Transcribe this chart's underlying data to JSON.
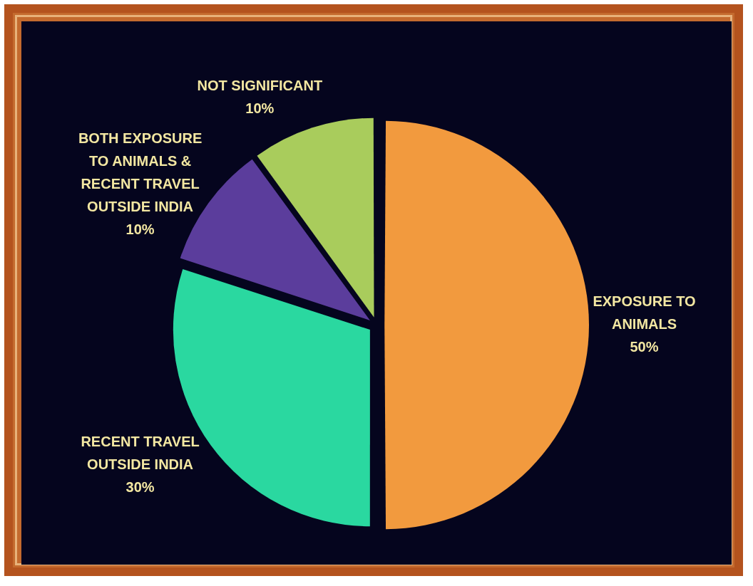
{
  "chart_data": {
    "type": "pie",
    "categories": [
      "EXPOSURE TO ANIMALS",
      "RECENT TRAVEL OUTSIDE INDIA",
      "BOTH EXPOSURE TO ANIMALS & RECENT TRAVEL OUTSIDE INDIA",
      "NOT SIGNIFICANT"
    ],
    "values": [
      50,
      30,
      10,
      10
    ],
    "colors": [
      "#f29a3e",
      "#2ad8a0",
      "#5b3d9c",
      "#a9cc5c"
    ],
    "value_labels": [
      "50%",
      "30%",
      "10%",
      "10%"
    ],
    "legend": false
  }
}
